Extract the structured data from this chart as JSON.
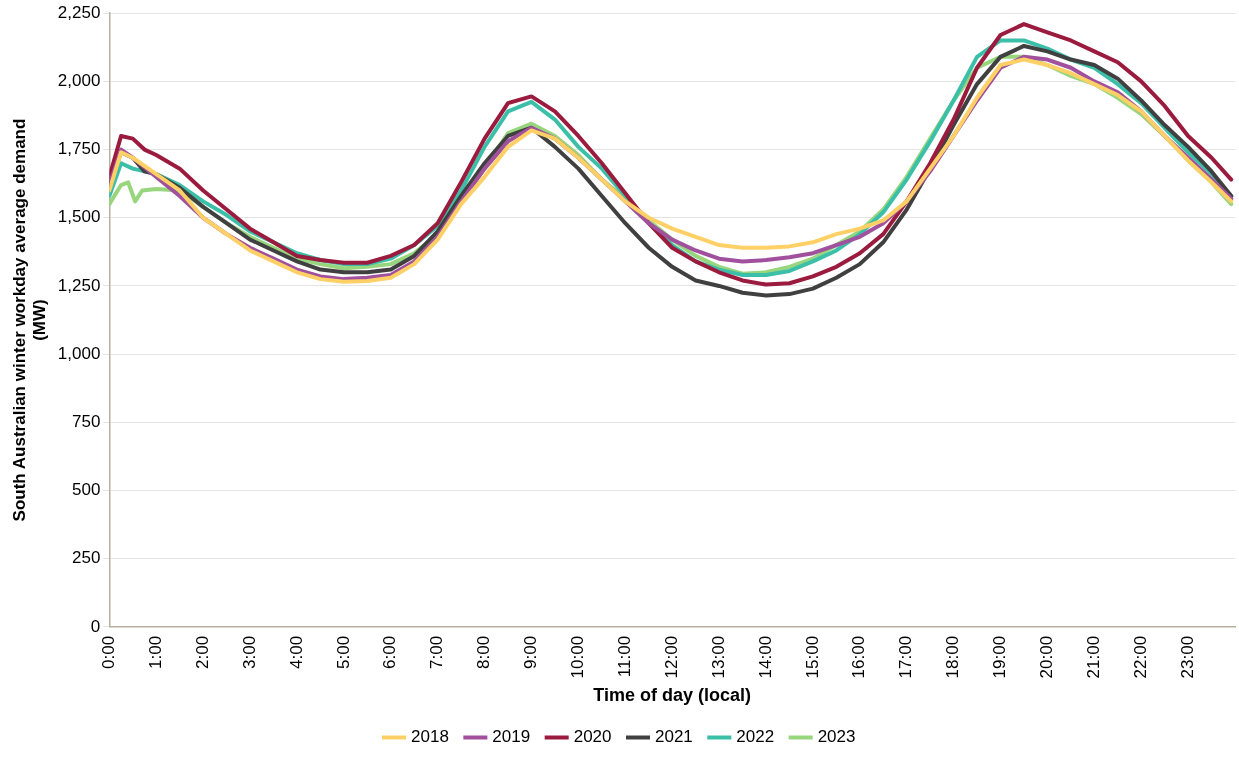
{
  "chart_data": {
    "type": "line",
    "xlabel": "Time of day (local)",
    "ylabel": "South Australian winter workday average demand (MW)",
    "xlim": [
      0,
      24
    ],
    "xticks": [
      {
        "value": 0,
        "label": "0:00"
      },
      {
        "value": 1,
        "label": "1:00"
      },
      {
        "value": 2,
        "label": "2:00"
      },
      {
        "value": 3,
        "label": "3:00"
      },
      {
        "value": 4,
        "label": "4:00"
      },
      {
        "value": 5,
        "label": "5:00"
      },
      {
        "value": 6,
        "label": "6:00"
      },
      {
        "value": 7,
        "label": "7:00"
      },
      {
        "value": 8,
        "label": "8:00"
      },
      {
        "value": 9,
        "label": "9:00"
      },
      {
        "value": 10,
        "label": "10:00"
      },
      {
        "value": 11,
        "label": "11:00"
      },
      {
        "value": 12,
        "label": "12:00"
      },
      {
        "value": 13,
        "label": "13:00"
      },
      {
        "value": 14,
        "label": "14:00"
      },
      {
        "value": 15,
        "label": "15:00"
      },
      {
        "value": 16,
        "label": "16:00"
      },
      {
        "value": 17,
        "label": "17:00"
      },
      {
        "value": 18,
        "label": "18:00"
      },
      {
        "value": 19,
        "label": "19:00"
      },
      {
        "value": 20,
        "label": "20:00"
      },
      {
        "value": 21,
        "label": "21:00"
      },
      {
        "value": 22,
        "label": "22:00"
      },
      {
        "value": 23,
        "label": "23:00"
      }
    ],
    "ylim": [
      0,
      2250
    ],
    "yticks": [
      0,
      250,
      500,
      750,
      {
        "value": 1000,
        "label": "1,000"
      },
      {
        "value": 1250,
        "label": "1,250"
      },
      {
        "value": 1500,
        "label": "1,500"
      },
      {
        "value": 1750,
        "label": "1,750"
      },
      {
        "value": 2000,
        "label": "2,000"
      },
      {
        "value": 2250,
        "label": "2,250"
      }
    ],
    "grid": "y",
    "legend": "bottom",
    "marker": "none",
    "line_style": "solid",
    "series": [
      {
        "name": "2018",
        "color": "#ffd066",
        "x": [
          0,
          0.25,
          0.5,
          1,
          1.5,
          2,
          2.5,
          3,
          3.5,
          4,
          4.5,
          5,
          5.5,
          6,
          6.5,
          7,
          7.5,
          8,
          8.5,
          9,
          9.5,
          10,
          10.5,
          11,
          11.5,
          12,
          12.5,
          13,
          13.5,
          14,
          14.5,
          15,
          15.5,
          16,
          16.5,
          17,
          17.5,
          18,
          18.5,
          19,
          19.5,
          20,
          20.5,
          21,
          21.5,
          22,
          22.5,
          23,
          23.5,
          23.92
        ],
        "values": [
          1600,
          1740,
          1720,
          1660,
          1600,
          1500,
          1440,
          1380,
          1340,
          1300,
          1275,
          1265,
          1268,
          1280,
          1330,
          1420,
          1550,
          1650,
          1760,
          1820,
          1790,
          1720,
          1640,
          1560,
          1500,
          1460,
          1430,
          1400,
          1390,
          1390,
          1395,
          1410,
          1440,
          1460,
          1490,
          1560,
          1680,
          1800,
          1940,
          2060,
          2080,
          2060,
          2030,
          1990,
          1950,
          1890,
          1800,
          1710,
          1630,
          1560
        ]
      },
      {
        "name": "2019",
        "color": "#a0509c",
        "x": [
          0,
          0.25,
          0.5,
          1,
          1.5,
          2,
          2.5,
          3,
          3.5,
          4,
          4.5,
          5,
          5.5,
          6,
          6.5,
          7,
          7.5,
          8,
          8.5,
          9,
          9.5,
          10,
          10.5,
          11,
          11.5,
          12,
          12.5,
          13,
          13.5,
          14,
          14.5,
          15,
          15.5,
          16,
          16.5,
          17,
          17.5,
          18,
          18.5,
          19,
          19.5,
          20,
          20.5,
          21,
          21.5,
          22,
          22.5,
          23,
          23.5,
          23.92
        ],
        "values": [
          1620,
          1750,
          1720,
          1650,
          1580,
          1500,
          1440,
          1390,
          1350,
          1310,
          1285,
          1275,
          1280,
          1290,
          1340,
          1430,
          1560,
          1680,
          1780,
          1830,
          1790,
          1720,
          1640,
          1560,
          1480,
          1420,
          1380,
          1350,
          1340,
          1345,
          1355,
          1370,
          1400,
          1430,
          1480,
          1560,
          1670,
          1800,
          1930,
          2050,
          2090,
          2080,
          2050,
          2000,
          1960,
          1890,
          1800,
          1720,
          1640,
          1570
        ]
      },
      {
        "name": "2020",
        "color": "#9b1b3e",
        "x": [
          0,
          0.25,
          0.5,
          0.75,
          1,
          1.5,
          2,
          2.5,
          3,
          3.5,
          4,
          4.5,
          5,
          5.5,
          6,
          6.5,
          7,
          7.5,
          8,
          8.5,
          9,
          9.5,
          10,
          10.5,
          11,
          11.5,
          12,
          12.5,
          13,
          13.5,
          14,
          14.5,
          15,
          15.5,
          16,
          16.5,
          17,
          17.5,
          18,
          18.5,
          19,
          19.5,
          20,
          20.5,
          21,
          21.5,
          22,
          22.5,
          23,
          23.5,
          23.92
        ],
        "values": [
          1650,
          1800,
          1790,
          1750,
          1730,
          1680,
          1600,
          1530,
          1460,
          1410,
          1360,
          1345,
          1335,
          1335,
          1360,
          1400,
          1480,
          1630,
          1790,
          1920,
          1945,
          1890,
          1800,
          1700,
          1590,
          1480,
          1390,
          1340,
          1300,
          1270,
          1255,
          1260,
          1285,
          1320,
          1370,
          1440,
          1560,
          1700,
          1860,
          2050,
          2170,
          2210,
          2180,
          2150,
          2110,
          2070,
          2000,
          1910,
          1800,
          1720,
          1640
        ]
      },
      {
        "name": "2021",
        "color": "#404040",
        "x": [
          0,
          0.25,
          0.5,
          0.75,
          1,
          1.5,
          2,
          2.5,
          3,
          3.5,
          4,
          4.5,
          5,
          5.5,
          6,
          6.5,
          7,
          7.5,
          8,
          8.5,
          9,
          9.5,
          10,
          10.5,
          11,
          11.5,
          12,
          12.5,
          13,
          13.5,
          14,
          14.5,
          15,
          15.5,
          16,
          16.5,
          17,
          17.5,
          18,
          18.5,
          19,
          19.5,
          20,
          20.5,
          21,
          21.5,
          22,
          22.5,
          23,
          23.5,
          23.92
        ],
        "values": [
          1620,
          1740,
          1720,
          1670,
          1660,
          1610,
          1540,
          1480,
          1420,
          1380,
          1340,
          1310,
          1300,
          1300,
          1310,
          1360,
          1450,
          1580,
          1700,
          1800,
          1830,
          1760,
          1680,
          1580,
          1480,
          1390,
          1320,
          1270,
          1250,
          1225,
          1215,
          1220,
          1240,
          1280,
          1330,
          1410,
          1530,
          1680,
          1840,
          1990,
          2090,
          2130,
          2110,
          2080,
          2060,
          2010,
          1930,
          1840,
          1760,
          1670,
          1580
        ]
      },
      {
        "name": "2022",
        "color": "#3cbfa8",
        "x": [
          0,
          0.25,
          0.5,
          1,
          1.5,
          2,
          2.5,
          3,
          3.5,
          4,
          4.5,
          5,
          5.5,
          6,
          6.5,
          7,
          7.5,
          8,
          8.5,
          9,
          9.5,
          10,
          10.5,
          11,
          11.5,
          12,
          12.5,
          13,
          13.5,
          14,
          14.5,
          15,
          15.5,
          16,
          16.5,
          17,
          17.5,
          18,
          18.5,
          19,
          19.5,
          20,
          20.5,
          21,
          21.5,
          22,
          22.5,
          23,
          23.5,
          23.92
        ],
        "values": [
          1580,
          1700,
          1680,
          1660,
          1620,
          1560,
          1510,
          1450,
          1410,
          1370,
          1345,
          1330,
          1330,
          1350,
          1400,
          1470,
          1600,
          1760,
          1890,
          1925,
          1860,
          1760,
          1680,
          1580,
          1480,
          1400,
          1340,
          1310,
          1290,
          1290,
          1305,
          1340,
          1380,
          1440,
          1520,
          1640,
          1780,
          1930,
          2090,
          2150,
          2150,
          2120,
          2080,
          2050,
          1990,
          1920,
          1830,
          1740,
          1660,
          1580
        ]
      },
      {
        "name": "2023",
        "color": "#98d67e",
        "x": [
          0,
          0.25,
          0.4,
          0.55,
          0.7,
          1,
          1.5,
          2,
          2.5,
          3,
          3.5,
          4,
          4.5,
          5,
          5.5,
          6,
          6.5,
          7,
          7.5,
          8,
          8.5,
          9,
          9.5,
          10,
          10.5,
          11,
          11.5,
          12,
          12.5,
          13,
          13.5,
          14,
          14.5,
          15,
          15.5,
          16,
          16.5,
          17,
          17.5,
          18,
          18.5,
          19,
          19.5,
          20,
          20.5,
          21,
          21.5,
          22,
          22.5,
          23,
          23.5,
          23.92
        ],
        "values": [
          1550,
          1620,
          1630,
          1560,
          1600,
          1605,
          1600,
          1540,
          1480,
          1430,
          1390,
          1350,
          1330,
          1315,
          1320,
          1330,
          1370,
          1440,
          1560,
          1680,
          1810,
          1845,
          1800,
          1730,
          1640,
          1570,
          1490,
          1420,
          1360,
          1320,
          1295,
          1300,
          1320,
          1350,
          1400,
          1450,
          1530,
          1650,
          1790,
          1930,
          2050,
          2090,
          2090,
          2060,
          2020,
          1990,
          1940,
          1880,
          1800,
          1710,
          1630,
          1550
        ]
      }
    ]
  }
}
